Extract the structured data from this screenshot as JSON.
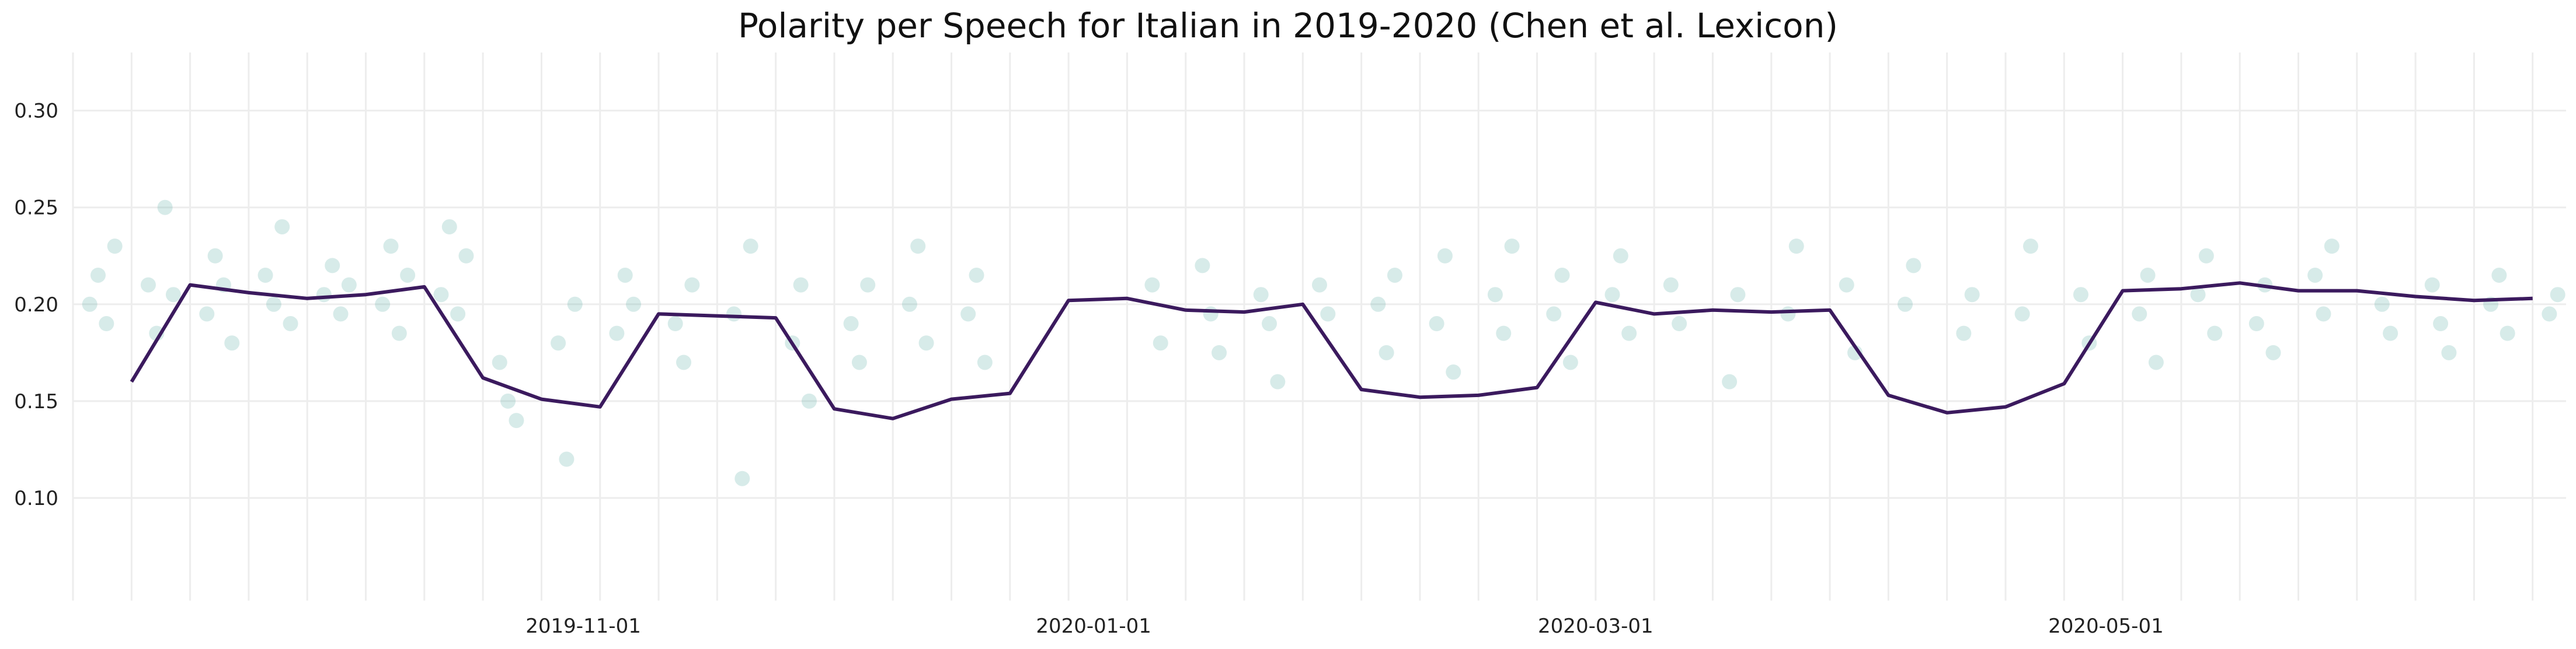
{
  "chart_data": {
    "type": "scatter",
    "title": "Polarity per Speech for Italian in 2019-2020 (Chen et al. Lexicon)",
    "xlabel": "",
    "ylabel": "",
    "x_range": [
      "2019-09-01",
      "2020-06-25"
    ],
    "ylim": [
      0.047,
      0.33
    ],
    "yticks": [
      0.1,
      0.15,
      0.2,
      0.25,
      0.3
    ],
    "ytick_labels": [
      "0.10",
      "0.15",
      "0.20",
      "0.25",
      "0.30"
    ],
    "xticks": [
      "2019-11-01",
      "2020-01-01",
      "2020-03-01",
      "2020-05-01"
    ],
    "xtick_labels": [
      "2019-11-01",
      "2020-01-01",
      "2020-03-01",
      "2020-05-01"
    ],
    "grid": true,
    "legend": "none",
    "colors": {
      "points": "#4aa39b",
      "line": "#3b1a5e",
      "grid": "#ededed"
    },
    "series": [
      {
        "type": "line",
        "x": [
          "2019-09-08",
          "2019-09-15",
          "2019-09-22",
          "2019-09-29",
          "2019-10-06",
          "2019-10-13",
          "2019-10-20",
          "2019-10-27",
          "2019-11-03",
          "2019-11-10",
          "2019-11-17",
          "2019-11-24",
          "2019-12-01",
          "2019-12-08",
          "2019-12-15",
          "2019-12-22",
          "2019-12-29",
          "2020-01-05",
          "2020-01-12",
          "2020-01-19",
          "2020-01-26",
          "2020-02-02",
          "2020-02-09",
          "2020-02-16",
          "2020-02-23",
          "2020-03-01",
          "2020-03-08",
          "2020-03-15",
          "2020-03-22",
          "2020-03-29",
          "2020-04-05",
          "2020-04-12",
          "2020-04-19",
          "2020-04-26",
          "2020-05-03",
          "2020-05-10",
          "2020-05-17",
          "2020-05-24",
          "2020-05-31",
          "2020-06-07",
          "2020-06-14",
          "2020-06-21"
        ],
        "y": [
          0.16,
          0.21,
          0.206,
          0.203,
          0.205,
          0.209,
          0.162,
          0.151,
          0.147,
          0.195,
          0.194,
          0.193,
          0.146,
          0.141,
          0.151,
          0.154,
          0.202,
          0.203,
          0.197,
          0.196,
          0.2,
          0.156,
          0.152,
          0.153,
          0.157,
          0.201,
          0.195,
          0.197,
          0.196,
          0.197,
          0.153,
          0.144,
          0.147,
          0.159,
          0.207,
          0.208,
          0.211,
          0.207,
          0.207,
          0.204,
          0.202,
          0.203
        ]
      },
      {
        "type": "scatter",
        "x": [
          "2019-09-03",
          "2019-09-04",
          "2019-09-05",
          "2019-09-06",
          "2019-09-10",
          "2019-09-11",
          "2019-09-12",
          "2019-09-13",
          "2019-09-17",
          "2019-09-18",
          "2019-09-19",
          "2019-09-20",
          "2019-09-24",
          "2019-09-25",
          "2019-09-26",
          "2019-09-27",
          "2019-10-01",
          "2019-10-02",
          "2019-10-03",
          "2019-10-04",
          "2019-10-08",
          "2019-10-09",
          "2019-10-10",
          "2019-10-11",
          "2019-10-15",
          "2019-10-16",
          "2019-10-17",
          "2019-10-18",
          "2019-10-22",
          "2019-10-23",
          "2019-10-24",
          "2019-10-29",
          "2019-10-30",
          "2019-10-31",
          "2019-11-05",
          "2019-11-06",
          "2019-11-07",
          "2019-11-12",
          "2019-11-13",
          "2019-11-14",
          "2019-11-19",
          "2019-11-20",
          "2019-11-21",
          "2019-11-26",
          "2019-11-27",
          "2019-11-28",
          "2019-12-03",
          "2019-12-04",
          "2019-12-05",
          "2019-12-10",
          "2019-12-11",
          "2019-12-12",
          "2019-12-17",
          "2019-12-18",
          "2019-12-19",
          "2020-01-08",
          "2020-01-09",
          "2020-01-14",
          "2020-01-15",
          "2020-01-16",
          "2020-01-21",
          "2020-01-22",
          "2020-01-23",
          "2020-01-28",
          "2020-01-29",
          "2020-02-04",
          "2020-02-05",
          "2020-02-06",
          "2020-02-11",
          "2020-02-12",
          "2020-02-13",
          "2020-02-18",
          "2020-02-19",
          "2020-02-20",
          "2020-02-25",
          "2020-02-26",
          "2020-02-27",
          "2020-03-03",
          "2020-03-04",
          "2020-03-05",
          "2020-03-10",
          "2020-03-11",
          "2020-03-17",
          "2020-03-18",
          "2020-03-24",
          "2020-03-25",
          "2020-03-31",
          "2020-04-01",
          "2020-04-07",
          "2020-04-08",
          "2020-04-14",
          "2020-04-15",
          "2020-04-21",
          "2020-04-22",
          "2020-04-28",
          "2020-04-29",
          "2020-05-05",
          "2020-05-06",
          "2020-05-07",
          "2020-05-12",
          "2020-05-13",
          "2020-05-14",
          "2020-05-19",
          "2020-05-20",
          "2020-05-21",
          "2020-05-26",
          "2020-05-27",
          "2020-05-28",
          "2020-06-03",
          "2020-06-04",
          "2020-06-09",
          "2020-06-10",
          "2020-06-11",
          "2020-06-16",
          "2020-06-17",
          "2020-06-18",
          "2020-06-23",
          "2020-06-24"
        ],
        "y": [
          0.2,
          0.215,
          0.19,
          0.23,
          0.21,
          0.185,
          0.25,
          0.205,
          0.195,
          0.225,
          0.21,
          0.18,
          0.215,
          0.2,
          0.24,
          0.19,
          0.205,
          0.22,
          0.195,
          0.21,
          0.2,
          0.23,
          0.185,
          0.215,
          0.205,
          0.24,
          0.195,
          0.225,
          0.17,
          0.15,
          0.14,
          0.18,
          0.12,
          0.2,
          0.185,
          0.215,
          0.2,
          0.19,
          0.17,
          0.21,
          0.195,
          0.11,
          0.23,
          0.18,
          0.21,
          0.15,
          0.19,
          0.17,
          0.21,
          0.2,
          0.23,
          0.18,
          0.195,
          0.215,
          0.17,
          0.21,
          0.18,
          0.22,
          0.195,
          0.175,
          0.205,
          0.19,
          0.16,
          0.21,
          0.195,
          0.2,
          0.175,
          0.215,
          0.19,
          0.225,
          0.165,
          0.205,
          0.185,
          0.23,
          0.195,
          0.215,
          0.17,
          0.205,
          0.225,
          0.185,
          0.21,
          0.19,
          0.16,
          0.205,
          0.195,
          0.23,
          0.21,
          0.175,
          0.2,
          0.22,
          0.185,
          0.205,
          0.195,
          0.23,
          0.205,
          0.18,
          0.195,
          0.215,
          0.17,
          0.205,
          0.225,
          0.185,
          0.19,
          0.21,
          0.175,
          0.215,
          0.195,
          0.23,
          0.2,
          0.185,
          0.21,
          0.19,
          0.175,
          0.2,
          0.215,
          0.185,
          0.195,
          0.205
        ]
      }
    ]
  }
}
